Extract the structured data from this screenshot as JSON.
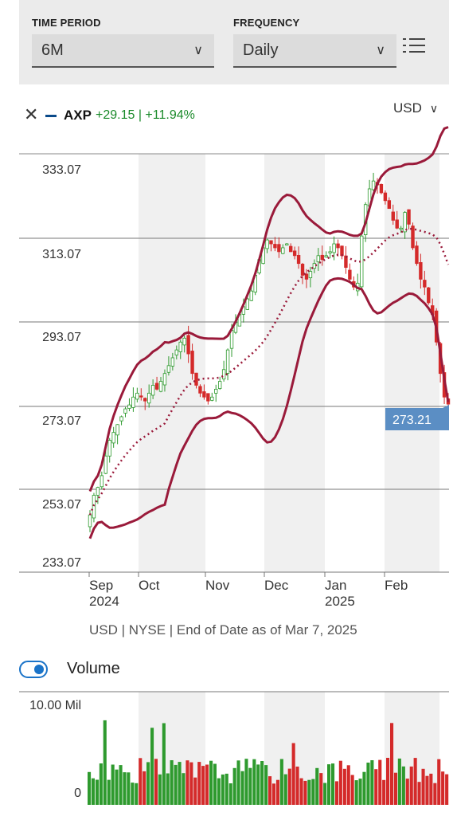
{
  "controls": {
    "time_period_label": "TIME PERIOD",
    "time_period_value": "6M",
    "frequency_label": "FREQUENCY",
    "frequency_value": "Daily"
  },
  "legend": {
    "symbol": "AXP",
    "change": "+29.15 | +11.94%",
    "series_color": "#0a4a8a",
    "change_color": "#1a8a2a"
  },
  "currency": "USD",
  "icons": [
    "close-icon",
    "chevron-down-icon",
    "list-settings-icon",
    "toggle-switch"
  ],
  "colors": {
    "up": "#2e9a2e",
    "down": "#d42a2a",
    "bands": "#9a1a3a",
    "last_price_tag": "#5b8ec4",
    "shade": "#f0f0f0"
  },
  "chart_data": {
    "type": "candlestick",
    "y_tick_labels": [
      "333.07",
      "313.07",
      "293.07",
      "273.07",
      "253.07",
      "233.07"
    ],
    "x_tick_labels": [
      {
        "month": "Sep",
        "year": "2024"
      },
      {
        "month": "Oct",
        "year": ""
      },
      {
        "month": "Nov",
        "year": ""
      },
      {
        "month": "Dec",
        "year": ""
      },
      {
        "month": "Jan",
        "year": "2025"
      },
      {
        "month": "Feb",
        "year": ""
      }
    ],
    "ylim": [
      233.07,
      333.07
    ],
    "last_price": "273.21",
    "overlay": "Bollinger Bands (upper, middle, lower)",
    "closes": [
      245,
      250,
      252,
      255,
      260,
      264,
      266,
      268,
      270,
      272,
      273,
      275,
      276,
      275,
      274,
      276,
      278,
      277,
      279,
      281,
      283,
      285,
      287,
      289,
      290,
      286,
      281,
      278,
      276,
      275,
      274,
      275,
      277,
      279,
      282,
      287,
      292,
      294,
      296,
      298,
      300,
      302,
      306,
      310,
      313,
      315,
      314,
      313,
      312,
      313,
      314,
      312,
      311,
      309,
      306,
      305,
      307,
      309,
      311,
      310,
      311,
      312,
      314,
      313,
      311,
      308,
      305,
      303,
      304,
      316,
      324,
      328,
      330,
      329,
      327,
      325,
      323,
      320,
      318,
      318,
      322,
      319,
      313,
      309,
      305,
      303,
      299,
      296,
      289,
      281,
      275,
      273.21
    ],
    "volume": {
      "y_tick_labels": [
        "10.00 Mil",
        "0"
      ],
      "ylim": [
        0,
        10
      ],
      "unit": "Mil"
    }
  },
  "footnote": "USD | NYSE | End of Date as of Mar 7, 2025",
  "volume_toggle": {
    "label": "Volume",
    "on": true
  }
}
